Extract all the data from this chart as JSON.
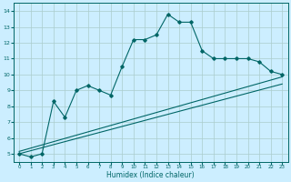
{
  "title": "",
  "xlabel": "Humidex (Indice chaleur)",
  "bg_color": "#cceeff",
  "grid_color": "#aacccc",
  "line_color": "#006666",
  "xlim": [
    -0.5,
    23.5
  ],
  "ylim": [
    4.5,
    14.5
  ],
  "xticks": [
    0,
    1,
    2,
    3,
    4,
    5,
    6,
    7,
    8,
    9,
    10,
    11,
    12,
    13,
    14,
    15,
    16,
    17,
    18,
    19,
    20,
    21,
    22,
    23
  ],
  "yticks": [
    5,
    6,
    7,
    8,
    9,
    10,
    11,
    12,
    13,
    14
  ],
  "main_x": [
    0,
    1,
    2,
    3,
    4,
    5,
    6,
    7,
    8,
    9,
    10,
    11,
    12,
    13,
    14,
    15,
    16,
    17,
    18,
    19,
    20,
    21,
    22,
    23
  ],
  "main_y": [
    5.0,
    4.8,
    5.0,
    8.3,
    7.3,
    9.0,
    9.3,
    9.0,
    8.7,
    10.5,
    12.2,
    12.2,
    12.5,
    13.8,
    13.3,
    13.3,
    11.5,
    11.0,
    11.0,
    11.0,
    11.0,
    10.8,
    10.2,
    10.0
  ],
  "line1_x": [
    0,
    23
  ],
  "line1_y": [
    5.0,
    9.4
  ],
  "line2_x": [
    0,
    23
  ],
  "line2_y": [
    5.15,
    9.85
  ]
}
